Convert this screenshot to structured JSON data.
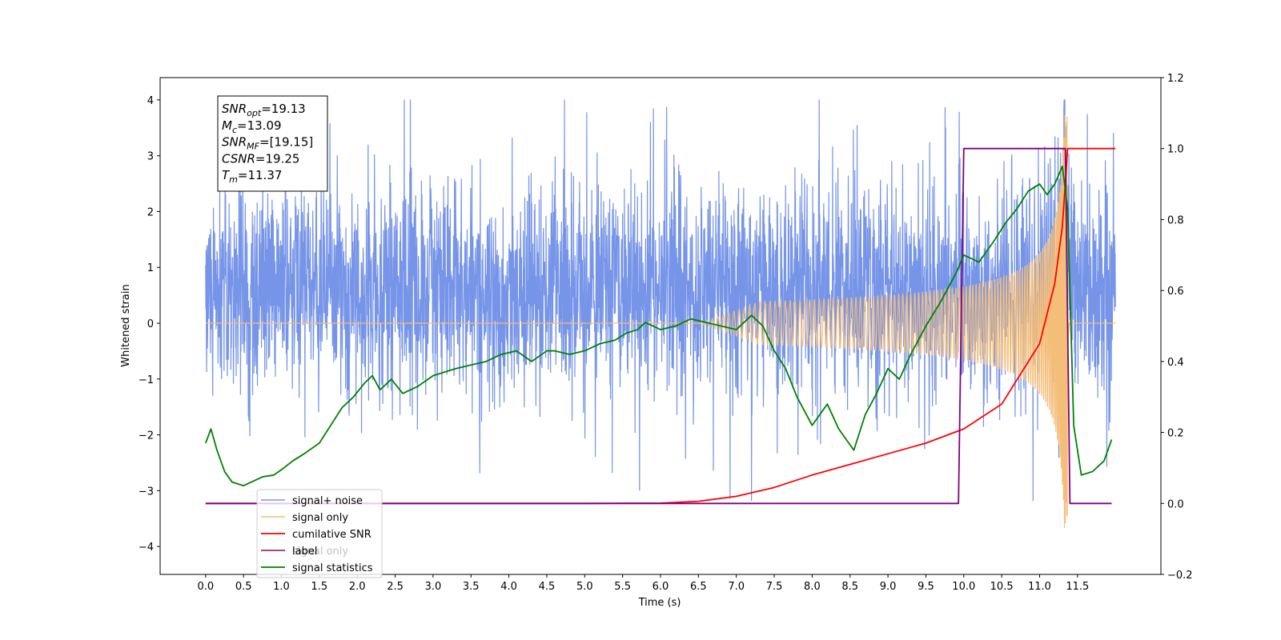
{
  "chart_data": {
    "type": "line",
    "title": "",
    "xlabel": "Time (s)",
    "ylabel": "Whitened strain",
    "y2label": "",
    "xlim": [
      -0.6,
      12.6
    ],
    "ylim": [
      -4.5,
      4.4
    ],
    "y2lim": [
      -0.2,
      1.2
    ],
    "x_ticks": [
      "0.0",
      "0.5",
      "1.0",
      "1.5",
      "2.0",
      "2.5",
      "3.0",
      "3.5",
      "4.0",
      "4.5",
      "5.0",
      "5.5",
      "6.0",
      "6.5",
      "7.0",
      "7.5",
      "8.0",
      "8.5",
      "9.0",
      "9.5",
      "10.0",
      "10.5",
      "11.0",
      "11.5"
    ],
    "y_ticks": [
      "4",
      "3",
      "2",
      "1",
      "0",
      "−1",
      "−2",
      "−3",
      "−4"
    ],
    "y2_ticks": [
      "1.2",
      "1.0",
      "0.8",
      "0.6",
      "0.4",
      "0.2",
      "0.0",
      "−0.2"
    ],
    "grid": false,
    "legend_position": "lower-left",
    "legend": [
      "signal+ noise",
      "signal only",
      "cumilative SNR",
      "label",
      "signal only",
      "signal statistics"
    ],
    "annotation": {
      "lines": [
        {
          "base": "SNR",
          "sub": "opt",
          "value": "=19.13"
        },
        {
          "base": "M",
          "sub": "c",
          "value": "=13.09"
        },
        {
          "base": "SNR",
          "sub": "MF",
          "value": "=[19.15]"
        },
        {
          "base": "CSNR",
          "sub": "",
          "value": "=19.25"
        },
        {
          "base": "T",
          "sub": "m",
          "value": "=11.37"
        }
      ]
    },
    "series": [
      {
        "name": "signal+ noise",
        "axis": "left",
        "color": "#7694e8",
        "t_range": [
          0.0,
          12.0
        ],
        "noise_envelope_typical": 2.6,
        "noise_extreme_max": 4.0,
        "noise_extreme_min": -4.1
      },
      {
        "name": "signal only",
        "axis": "left",
        "color": "#f5be78",
        "chirp_start": 6.5,
        "merger_time": 11.37,
        "peak_amplitude": 3.75
      },
      {
        "name": "cumilative SNR",
        "axis": "right",
        "color": "#ff0000",
        "x": [
          0.0,
          5.0,
          6.0,
          6.5,
          7.0,
          7.5,
          8.0,
          8.5,
          9.0,
          9.5,
          10.0,
          10.5,
          11.0,
          11.2,
          11.3,
          11.37,
          12.0
        ],
        "y": [
          0.0,
          0.0,
          0.001,
          0.006,
          0.02,
          0.045,
          0.08,
          0.11,
          0.14,
          0.17,
          0.21,
          0.28,
          0.45,
          0.62,
          0.78,
          1.0,
          1.0
        ]
      },
      {
        "name": "label",
        "axis": "right",
        "color": "#800080",
        "x": [
          0.0,
          9.93,
          10.0,
          11.34,
          11.4,
          11.95
        ],
        "y": [
          0.0,
          0.0,
          1.0,
          1.0,
          0.0,
          0.0
        ]
      },
      {
        "name": "signal statistics",
        "axis": "right",
        "color": "#008000",
        "x": [
          0.0,
          0.07,
          0.15,
          0.25,
          0.35,
          0.5,
          0.6,
          0.75,
          0.9,
          1.0,
          1.15,
          1.3,
          1.5,
          1.65,
          1.8,
          1.95,
          2.1,
          2.2,
          2.3,
          2.45,
          2.6,
          2.8,
          3.0,
          3.15,
          3.3,
          3.5,
          3.7,
          3.9,
          4.1,
          4.3,
          4.5,
          4.6,
          4.8,
          5.0,
          5.2,
          5.4,
          5.55,
          5.7,
          5.8,
          6.0,
          6.2,
          6.4,
          6.6,
          6.8,
          7.0,
          7.2,
          7.35,
          7.5,
          7.65,
          7.8,
          8.0,
          8.2,
          8.35,
          8.55,
          8.7,
          8.85,
          9.0,
          9.15,
          9.3,
          9.5,
          9.7,
          9.9,
          10.0,
          10.1,
          10.2,
          10.4,
          10.55,
          10.7,
          10.85,
          11.0,
          11.1,
          11.2,
          11.3,
          11.37,
          11.45,
          11.55,
          11.7,
          11.85,
          11.95
        ],
        "y": [
          0.17,
          0.21,
          0.15,
          0.09,
          0.06,
          0.05,
          0.06,
          0.075,
          0.08,
          0.095,
          0.12,
          0.14,
          0.17,
          0.22,
          0.27,
          0.3,
          0.34,
          0.36,
          0.32,
          0.35,
          0.31,
          0.33,
          0.36,
          0.37,
          0.38,
          0.39,
          0.4,
          0.42,
          0.43,
          0.4,
          0.43,
          0.43,
          0.42,
          0.43,
          0.45,
          0.46,
          0.48,
          0.49,
          0.51,
          0.49,
          0.5,
          0.52,
          0.51,
          0.5,
          0.49,
          0.53,
          0.5,
          0.43,
          0.38,
          0.3,
          0.22,
          0.28,
          0.21,
          0.15,
          0.25,
          0.31,
          0.38,
          0.35,
          0.42,
          0.5,
          0.57,
          0.65,
          0.7,
          0.69,
          0.68,
          0.74,
          0.79,
          0.83,
          0.88,
          0.9,
          0.87,
          0.9,
          0.95,
          0.83,
          0.22,
          0.08,
          0.09,
          0.12,
          0.18
        ]
      }
    ]
  }
}
